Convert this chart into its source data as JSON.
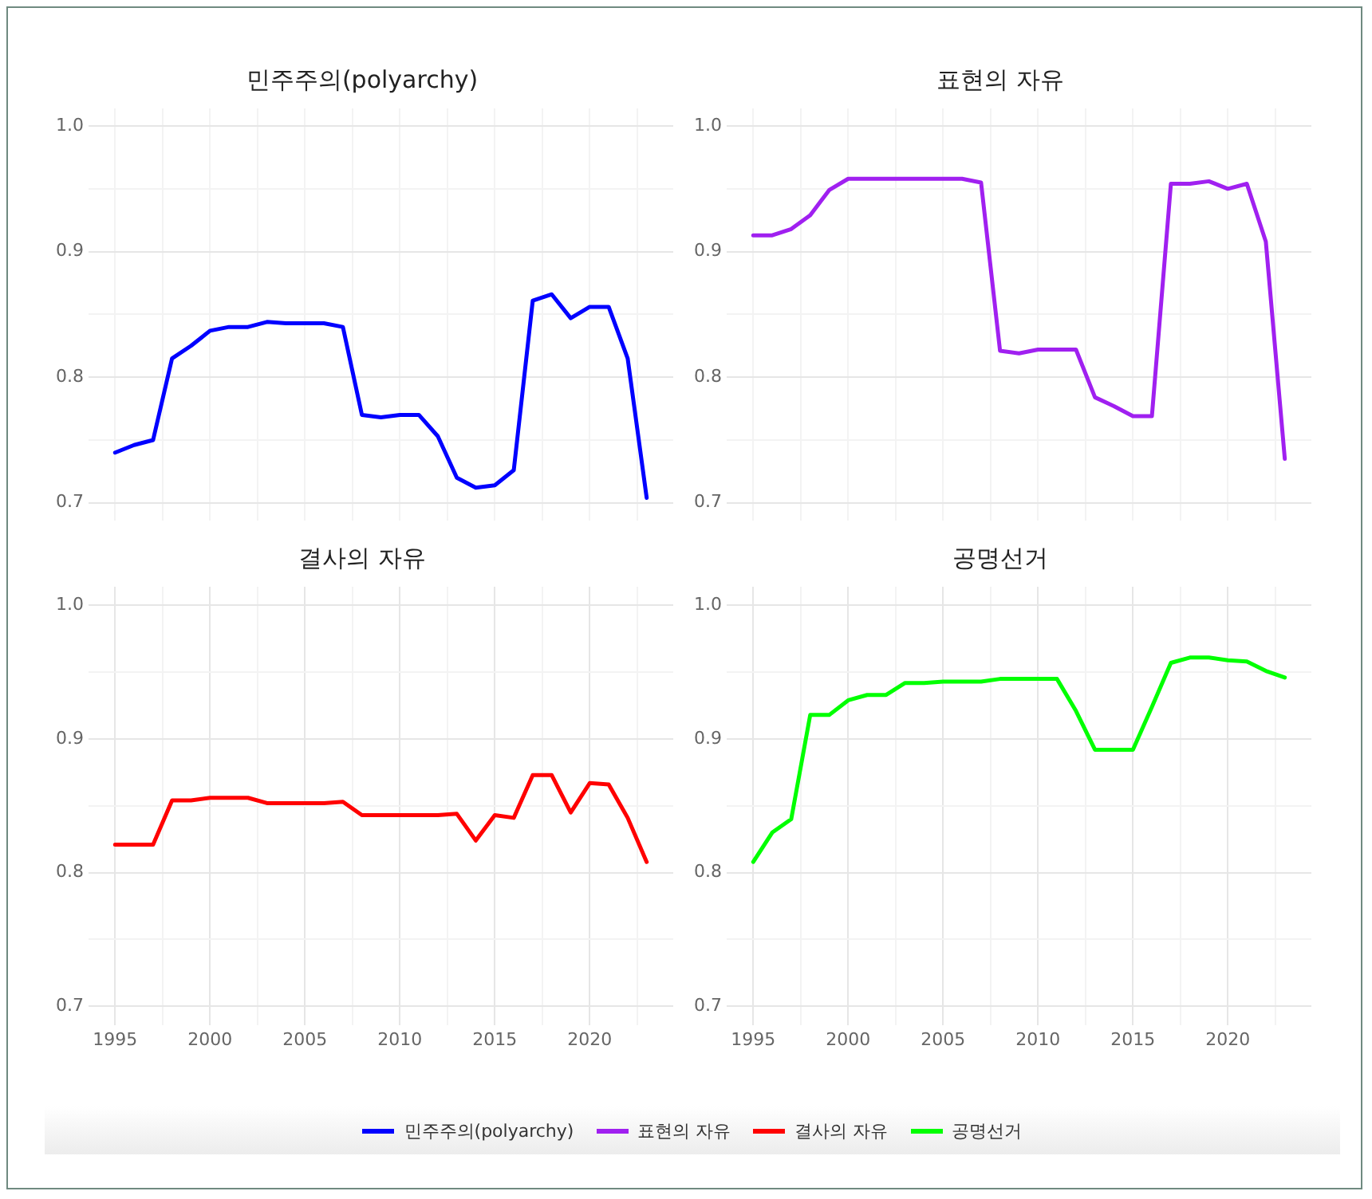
{
  "chart_data": [
    {
      "type": "line",
      "title": "민주주의(polyarchy)",
      "x": [
        1995,
        1996,
        1997,
        1998,
        1999,
        2000,
        2001,
        2002,
        2003,
        2004,
        2005,
        2006,
        2007,
        2008,
        2009,
        2010,
        2011,
        2012,
        2013,
        2014,
        2015,
        2016,
        2017,
        2018,
        2019,
        2020,
        2021,
        2022,
        2023
      ],
      "series": [
        {
          "name": "민주주의(polyarchy)",
          "color": "#0000ff",
          "values": [
            0.74,
            0.746,
            0.75,
            0.815,
            0.825,
            0.837,
            0.84,
            0.84,
            0.844,
            0.843,
            0.843,
            0.843,
            0.84,
            0.77,
            0.768,
            0.77,
            0.77,
            0.753,
            0.72,
            0.712,
            0.714,
            0.726,
            0.861,
            0.866,
            0.847,
            0.856,
            0.856,
            0.815,
            0.704
          ]
        }
      ],
      "xlim": [
        1993.6,
        2024.4
      ],
      "xticks": [
        {
          "value": 1995,
          "label": null
        },
        {
          "value": 1997.5,
          "label": null
        },
        {
          "value": 2000,
          "label": null
        },
        {
          "value": 2002.5,
          "label": null
        },
        {
          "value": 2005,
          "label": null
        },
        {
          "value": 2007.5,
          "label": null
        },
        {
          "value": 2010,
          "label": null
        },
        {
          "value": 2012.5,
          "label": null
        },
        {
          "value": 2015,
          "label": null
        },
        {
          "value": 2017.5,
          "label": null
        },
        {
          "value": 2020,
          "label": null
        },
        {
          "value": 2022.5,
          "label": null
        }
      ],
      "ylim": [
        0.686,
        1.014
      ],
      "yticks": [
        {
          "value": 0.7,
          "label": "0.7"
        },
        {
          "value": 0.75,
          "label": null
        },
        {
          "value": 0.8,
          "label": "0.8"
        },
        {
          "value": 0.85,
          "label": null
        },
        {
          "value": 0.9,
          "label": "0.9"
        },
        {
          "value": 0.95,
          "label": null
        },
        {
          "value": 1.0,
          "label": "1.0"
        }
      ],
      "tick_labels": "y",
      "grid": true,
      "legend": "bottom",
      "marker": "none",
      "line_style": "solid"
    },
    {
      "type": "line",
      "title": "표현의 자유",
      "x": [
        1995,
        1996,
        1997,
        1998,
        1999,
        2000,
        2001,
        2002,
        2003,
        2004,
        2005,
        2006,
        2007,
        2008,
        2009,
        2010,
        2011,
        2012,
        2013,
        2014,
        2015,
        2016,
        2017,
        2018,
        2019,
        2020,
        2021,
        2022,
        2023
      ],
      "series": [
        {
          "name": "표현의 자유",
          "color": "#a020f0",
          "values": [
            0.913,
            0.913,
            0.918,
            0.929,
            0.949,
            0.958,
            0.958,
            0.958,
            0.958,
            0.958,
            0.958,
            0.958,
            0.955,
            0.821,
            0.819,
            0.822,
            0.822,
            0.822,
            0.784,
            0.777,
            0.769,
            0.769,
            0.954,
            0.954,
            0.956,
            0.95,
            0.954,
            0.908,
            0.735
          ]
        }
      ],
      "xlim": [
        1993.6,
        2024.4
      ],
      "xticks": [
        {
          "value": 1995,
          "label": null
        },
        {
          "value": 1997.5,
          "label": null
        },
        {
          "value": 2000,
          "label": null
        },
        {
          "value": 2002.5,
          "label": null
        },
        {
          "value": 2005,
          "label": null
        },
        {
          "value": 2007.5,
          "label": null
        },
        {
          "value": 2010,
          "label": null
        },
        {
          "value": 2012.5,
          "label": null
        },
        {
          "value": 2015,
          "label": null
        },
        {
          "value": 2017.5,
          "label": null
        },
        {
          "value": 2020,
          "label": null
        },
        {
          "value": 2022.5,
          "label": null
        }
      ],
      "ylim": [
        0.686,
        1.014
      ],
      "yticks": [
        {
          "value": 0.7,
          "label": "0.7"
        },
        {
          "value": 0.75,
          "label": null
        },
        {
          "value": 0.8,
          "label": "0.8"
        },
        {
          "value": 0.85,
          "label": null
        },
        {
          "value": 0.9,
          "label": "0.9"
        },
        {
          "value": 0.95,
          "label": null
        },
        {
          "value": 1.0,
          "label": "1.0"
        }
      ],
      "tick_labels": "y",
      "grid": true,
      "legend": "bottom",
      "marker": "none",
      "line_style": "solid"
    },
    {
      "type": "line",
      "title": "결사의 자유",
      "x": [
        1995,
        1996,
        1997,
        1998,
        1999,
        2000,
        2001,
        2002,
        2003,
        2004,
        2005,
        2006,
        2007,
        2008,
        2009,
        2010,
        2011,
        2012,
        2013,
        2014,
        2015,
        2016,
        2017,
        2018,
        2019,
        2020,
        2021,
        2022,
        2023
      ],
      "series": [
        {
          "name": "결사의 자유",
          "color": "#ff0000",
          "values": [
            0.821,
            0.821,
            0.821,
            0.854,
            0.854,
            0.856,
            0.856,
            0.856,
            0.852,
            0.852,
            0.852,
            0.852,
            0.853,
            0.843,
            0.843,
            0.843,
            0.843,
            0.843,
            0.844,
            0.824,
            0.843,
            0.841,
            0.873,
            0.873,
            0.845,
            0.867,
            0.866,
            0.841,
            0.808
          ]
        }
      ],
      "xlim": [
        1993.6,
        2024.4
      ],
      "xticks": [
        {
          "value": 1995,
          "label": "1995"
        },
        {
          "value": 1997.5,
          "label": null
        },
        {
          "value": 2000,
          "label": "2000"
        },
        {
          "value": 2002.5,
          "label": null
        },
        {
          "value": 2005,
          "label": "2005"
        },
        {
          "value": 2007.5,
          "label": null
        },
        {
          "value": 2010,
          "label": "2010"
        },
        {
          "value": 2012.5,
          "label": null
        },
        {
          "value": 2015,
          "label": "2015"
        },
        {
          "value": 2017.5,
          "label": null
        },
        {
          "value": 2020,
          "label": "2020"
        },
        {
          "value": 2022.5,
          "label": null
        }
      ],
      "ylim": [
        0.686,
        1.014
      ],
      "yticks": [
        {
          "value": 0.7,
          "label": "0.7"
        },
        {
          "value": 0.75,
          "label": null
        },
        {
          "value": 0.8,
          "label": "0.8"
        },
        {
          "value": 0.85,
          "label": null
        },
        {
          "value": 0.9,
          "label": "0.9"
        },
        {
          "value": 0.95,
          "label": null
        },
        {
          "value": 1.0,
          "label": "1.0"
        }
      ],
      "grid": true,
      "legend": "bottom",
      "marker": "none",
      "line_style": "solid"
    },
    {
      "type": "line",
      "title": "공명선거",
      "x": [
        1995,
        1996,
        1997,
        1998,
        1999,
        2000,
        2001,
        2002,
        2003,
        2004,
        2005,
        2006,
        2007,
        2008,
        2009,
        2010,
        2011,
        2012,
        2013,
        2014,
        2015,
        2016,
        2017,
        2018,
        2019,
        2020,
        2021,
        2022,
        2023
      ],
      "series": [
        {
          "name": "공명선거",
          "color": "#00ff00",
          "values": [
            0.808,
            0.83,
            0.84,
            0.918,
            0.918,
            0.929,
            0.933,
            0.933,
            0.942,
            0.942,
            0.943,
            0.943,
            0.943,
            0.945,
            0.945,
            0.945,
            0.945,
            0.921,
            0.892,
            0.892,
            0.892,
            0.924,
            0.957,
            0.961,
            0.961,
            0.959,
            0.958,
            0.951,
            0.946
          ]
        }
      ],
      "xlim": [
        1993.6,
        2024.4
      ],
      "xticks": [
        {
          "value": 1995,
          "label": "1995"
        },
        {
          "value": 1997.5,
          "label": null
        },
        {
          "value": 2000,
          "label": "2000"
        },
        {
          "value": 2002.5,
          "label": null
        },
        {
          "value": 2005,
          "label": "2005"
        },
        {
          "value": 2007.5,
          "label": null
        },
        {
          "value": 2010,
          "label": "2010"
        },
        {
          "value": 2012.5,
          "label": null
        },
        {
          "value": 2015,
          "label": "2015"
        },
        {
          "value": 2017.5,
          "label": null
        },
        {
          "value": 2020,
          "label": "2020"
        },
        {
          "value": 2022.5,
          "label": null
        }
      ],
      "ylim": [
        0.686,
        1.014
      ],
      "yticks": [
        {
          "value": 0.7,
          "label": "0.7"
        },
        {
          "value": 0.75,
          "label": null
        },
        {
          "value": 0.8,
          "label": "0.8"
        },
        {
          "value": 0.85,
          "label": null
        },
        {
          "value": 0.9,
          "label": "0.9"
        },
        {
          "value": 0.95,
          "label": null
        },
        {
          "value": 1.0,
          "label": "1.0"
        }
      ],
      "grid": true,
      "legend": "bottom",
      "marker": "none",
      "line_style": "solid"
    }
  ]
}
